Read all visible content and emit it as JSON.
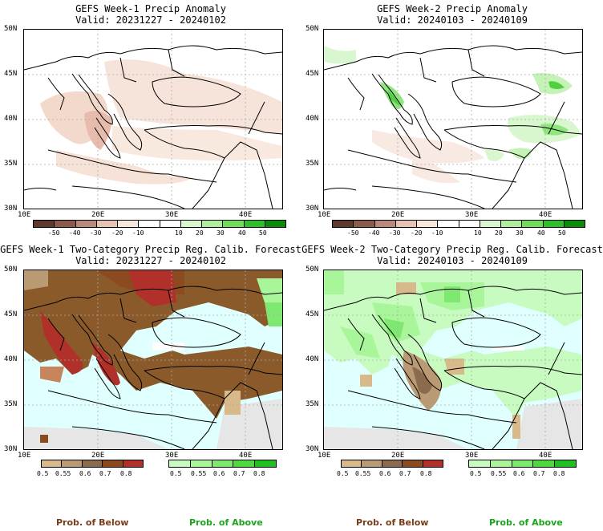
{
  "panels": [
    {
      "title": "GEFS Week-1 Precip Anomaly",
      "valid": "Valid: 20231227 - 20240102"
    },
    {
      "title": "GEFS Week-2 Precip Anomaly",
      "valid": "Valid: 20240103 - 20240109"
    },
    {
      "title": "GEFS Week-1 Two-Category Precip Reg. Calib. Forecast",
      "valid": "Valid: 20231227 - 20240102"
    },
    {
      "title": "GEFS Week-2 Two-Category Precip Reg. Calib. Forecast",
      "valid": "Valid: 20240103 - 20240109"
    }
  ],
  "lat_labels": [
    "50N",
    "45N",
    "40N",
    "35N",
    "30N"
  ],
  "lon_labels": [
    "10E",
    "20E",
    "30E",
    "40E"
  ],
  "anomaly_colorbar": {
    "colors": [
      "#5e3a2e",
      "#8a5a4a",
      "#b98a7a",
      "#e6c4b4",
      "#f6e6dc",
      "#ffffff",
      "#ffffff",
      "#d9f7cf",
      "#b0ee9e",
      "#6fdc5a",
      "#2fbf2a",
      "#0a8c0a"
    ],
    "labels": [
      "-50",
      "-40",
      "-30",
      "-20",
      "-10",
      "10",
      "20",
      "30",
      "40",
      "50"
    ]
  },
  "prob_below_colorbar": {
    "colors": [
      "#d8b98a",
      "#b99a72",
      "#8c6a4d",
      "#8b4b1e",
      "#b0302a"
    ],
    "labels": [
      "0.5",
      "0.55",
      "0.6",
      "0.7",
      "0.8"
    ]
  },
  "prob_above_colorbar": {
    "colors": [
      "#c8fbc0",
      "#a8f59a",
      "#7fe870",
      "#4fd840",
      "#22bf22"
    ],
    "labels": [
      "0.5",
      "0.55",
      "0.6",
      "0.7",
      "0.8"
    ]
  },
  "legend": {
    "below": "Prob. of Below",
    "above": "Prob. of Above",
    "below_color": "#7a3b1a",
    "above_color": "#1aa51a"
  },
  "colors": {
    "sea_cyan": "#e0ffff",
    "land_grey": "#e6e6e6"
  }
}
